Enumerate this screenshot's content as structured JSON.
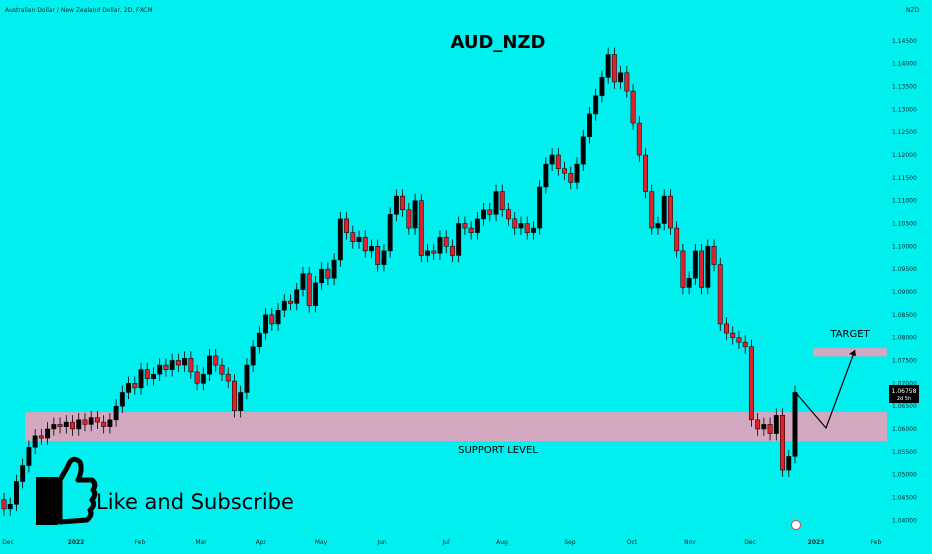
{
  "header": {
    "symbol_desc": "Australian Dollar / New Zealand Dollar, 2D, FXCM",
    "currency": "NZD"
  },
  "annotations": {
    "title": "AUD_NZD",
    "support_label": "SUPPORT LEVEL",
    "target_label": "TARGET",
    "like_text": "Like and Subscribe",
    "price_tag": "1.06758",
    "price_tag_sub": "2d 5h"
  },
  "colors": {
    "background": "#00f0f0",
    "up": "#000000",
    "down": "#e0202a",
    "zone": "#d4a8c0"
  },
  "chart_data": {
    "type": "candlestick",
    "title": "AUD_NZD",
    "ylim": [
      1.037,
      1.15
    ],
    "y_ticks": [
      1.04,
      1.045,
      1.05,
      1.055,
      1.06,
      1.065,
      1.07,
      1.075,
      1.08,
      1.085,
      1.09,
      1.095,
      1.1,
      1.105,
      1.11,
      1.115,
      1.12,
      1.125,
      1.13,
      1.135,
      1.14,
      1.145
    ],
    "x_labels": [
      "Dec",
      "2022",
      "Feb",
      "Mar",
      "Apr",
      "May",
      "Jun",
      "Jul",
      "Aug",
      "Sep",
      "Oct",
      "Nov",
      "Dec",
      "2023",
      "Feb"
    ],
    "support_zone": [
      1.0573,
      1.0637
    ],
    "target_zone": [
      1.0759,
      1.0777
    ],
    "close": [
      1.0425,
      1.0435,
      1.0485,
      1.052,
      1.056,
      1.0585,
      1.058,
      1.06,
      1.061,
      1.0605,
      1.0615,
      1.06,
      1.062,
      1.061,
      1.0625,
      1.0615,
      1.0605,
      1.062,
      1.065,
      1.068,
      1.07,
      1.069,
      1.073,
      1.071,
      1.072,
      1.074,
      1.073,
      1.075,
      1.074,
      1.0755,
      1.0725,
      1.07,
      1.072,
      1.076,
      1.074,
      1.072,
      1.0705,
      1.064,
      1.068,
      1.074,
      1.078,
      1.081,
      1.085,
      1.083,
      1.086,
      1.088,
      1.0875,
      1.0905,
      1.094,
      1.087,
      1.092,
      1.095,
      1.093,
      1.097,
      1.106,
      1.103,
      1.101,
      1.102,
      1.099,
      1.1,
      1.096,
      1.099,
      1.107,
      1.111,
      1.108,
      1.104,
      1.11,
      1.098,
      1.099,
      1.0985,
      1.102,
      1.1,
      1.098,
      1.105,
      1.104,
      1.103,
      1.106,
      1.108,
      1.107,
      1.112,
      1.108,
      1.106,
      1.104,
      1.105,
      1.103,
      1.104,
      1.113,
      1.118,
      1.12,
      1.117,
      1.116,
      1.114,
      1.118,
      1.124,
      1.129,
      1.133,
      1.137,
      1.142,
      1.136,
      1.138,
      1.134,
      1.127,
      1.12,
      1.112,
      1.104,
      1.105,
      1.111,
      1.104,
      1.099,
      1.091,
      1.093,
      1.099,
      1.091,
      1.1,
      1.096,
      1.083,
      1.081,
      1.08,
      1.079,
      1.078,
      1.062,
      1.06,
      1.061,
      1.059,
      1.063,
      1.051,
      1.054,
      1.068
    ]
  }
}
